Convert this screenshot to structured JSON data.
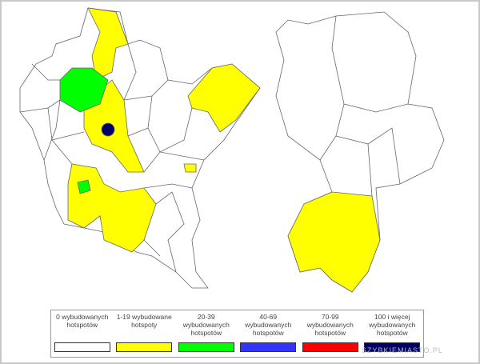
{
  "legend": {
    "items": [
      {
        "label": "0 wybudowanych hotspotów",
        "color": "#ffffff"
      },
      {
        "label": "1-19 wybudowane hotspoty",
        "color": "#ffff00"
      },
      {
        "label": "20-39 wybudowanych hotspotów",
        "color": "#00ff00"
      },
      {
        "label": "40-69 wybudowanych hotspotów",
        "color": "#3333ff"
      },
      {
        "label": "70-99 wybudowanych hotspotów",
        "color": "#ff0000"
      },
      {
        "label": "100 i więcej wybudowanych hotspotów",
        "color": "#000066"
      }
    ]
  },
  "watermark": "SZYBKIEMIASTO.PL"
}
